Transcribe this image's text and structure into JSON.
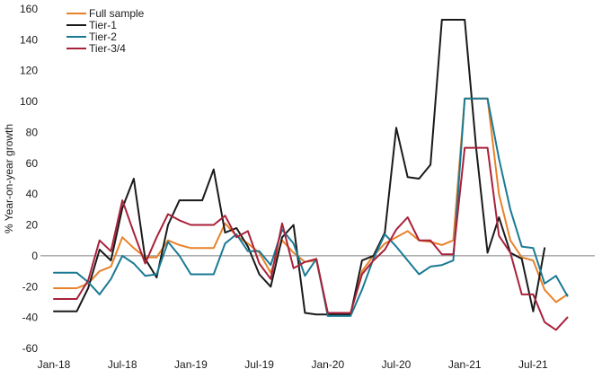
{
  "chart_data": {
    "type": "line",
    "title": "",
    "xlabel": "",
    "ylabel": "% Year-on-year growth",
    "ylim": [
      -60,
      160
    ],
    "yticks": [
      -60,
      -40,
      -20,
      0,
      20,
      40,
      60,
      80,
      100,
      120,
      140,
      160
    ],
    "ytick_labels": [
      "-60",
      "-40",
      "-20",
      "0",
      "20",
      "40",
      "60",
      "80",
      "100",
      "120",
      "140",
      "160"
    ],
    "xtick_labels": [
      "Jan-18",
      "Jul-18",
      "Jan-19",
      "Jul-19",
      "Jan-20",
      "Jul-20",
      "Jan-21",
      "Jul-21"
    ],
    "grid": false,
    "legend_position": "top-left",
    "x": [
      "Jan-18",
      "Feb-18",
      "Mar-18",
      "Apr-18",
      "May-18",
      "Jun-18",
      "Jul-18",
      "Aug-18",
      "Sep-18",
      "Oct-18",
      "Nov-18",
      "Dec-18",
      "Jan-19",
      "Feb-19",
      "Mar-19",
      "Apr-19",
      "May-19",
      "Jun-19",
      "Jul-19",
      "Aug-19",
      "Sep-19",
      "Oct-19",
      "Nov-19",
      "Dec-19",
      "Jan-20",
      "Feb-20",
      "Mar-20",
      "Apr-20",
      "May-20",
      "Jun-20",
      "Jul-20",
      "Aug-20",
      "Sep-20",
      "Oct-20",
      "Nov-20",
      "Dec-20",
      "Jan-21",
      "Feb-21",
      "Mar-21",
      "Apr-21",
      "May-21",
      "Jun-21",
      "Jul-21",
      "Aug-21",
      "Sep-21",
      "Oct-21",
      "Nov-21"
    ],
    "series": [
      {
        "name": "Full sample",
        "color": "#E8822A",
        "values": [
          -21,
          -21,
          -21,
          -18,
          -10,
          -7,
          12,
          5,
          -1,
          -1,
          10,
          7,
          5,
          5,
          5,
          21,
          13,
          8,
          2,
          -11,
          10,
          2,
          -4,
          -3,
          -37,
          -37,
          -37,
          -10,
          0,
          8,
          12,
          16,
          10,
          9,
          7,
          10,
          102,
          102,
          102,
          40,
          10,
          -1,
          -3,
          -22,
          -30,
          -25,
          null
        ]
      },
      {
        "name": "Tier-1",
        "color": "#1A1A1A",
        "values": [
          -36,
          -36,
          -36,
          -21,
          4,
          -3,
          31,
          50,
          -2,
          -14,
          20,
          36,
          36,
          36,
          56,
          15,
          18,
          6,
          -12,
          -20,
          12,
          20,
          -37,
          -38,
          -38,
          -38,
          -38,
          -3,
          0,
          15,
          83,
          51,
          50,
          59,
          153,
          153,
          153,
          70,
          2,
          25,
          2,
          -2,
          -36,
          5,
          null,
          null,
          null
        ]
      },
      {
        "name": "Tier-2",
        "color": "#1A7A94",
        "values": [
          -11,
          -11,
          -11,
          -17,
          -25,
          -15,
          0,
          -5,
          -13,
          -12,
          9,
          0,
          -12,
          -12,
          -12,
          8,
          14,
          3,
          3,
          -6,
          17,
          8,
          -13,
          -2,
          -39,
          -39,
          -39,
          -22,
          -2,
          14,
          6,
          -3,
          -12,
          -7,
          -6,
          -3,
          102,
          102,
          102,
          63,
          30,
          6,
          5,
          -18,
          -13,
          -26,
          null
        ]
      },
      {
        "name": "Tier-3/4",
        "color": "#A8213A",
        "values": [
          -28,
          -28,
          -28,
          -16,
          10,
          3,
          36,
          15,
          -5,
          12,
          27,
          23,
          20,
          20,
          20,
          26,
          12,
          16,
          -5,
          -15,
          21,
          -8,
          -4,
          -2,
          -37,
          -37,
          -37,
          -12,
          -3,
          4,
          17,
          25,
          10,
          10,
          1,
          1,
          70,
          70,
          70,
          13,
          2,
          -25,
          -25,
          -43,
          -48,
          -40,
          null
        ]
      }
    ]
  }
}
